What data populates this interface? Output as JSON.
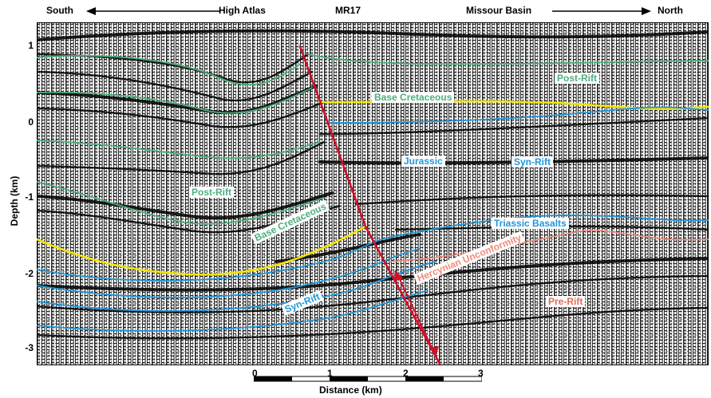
{
  "header": {
    "south": "South",
    "high_atlas": "High Atlas",
    "line_name": "MR17",
    "missour_basin": "Missour Basin",
    "north": "North"
  },
  "axis": {
    "y_title": "Depth (km)",
    "y_ticks": [
      "1",
      "0",
      "-1",
      "-2",
      "-3"
    ],
    "scale_ticks": [
      "0",
      "1",
      "2",
      "3"
    ],
    "scale_title": "Distance (km)"
  },
  "labels": {
    "post_rift_north": "Post-Rift",
    "base_cretaceous_north": "Base Cretaceous",
    "jurassic": "Jurassic",
    "syn_rift_north": "Syn-Rift",
    "post_rift_south": "Post-Rift",
    "triassic_basalts": "Triassic Basalts",
    "base_cretaceous_south": "Base Cretaceous",
    "hercynian_unconformity": "Hercynian Unconformity",
    "syn_rift_south": "Syn-Rift",
    "pre_rift": "Pre-Rift"
  },
  "colors": {
    "post_rift": "#4caf7d",
    "base_cretaceous": "#f5e400",
    "syn_rift": "#2196d8",
    "triassic_basalts": "#2196d8",
    "hercynian": "#f08a78",
    "pre_rift": "#e06b55",
    "fault": "#d0102a",
    "jurassic": "#2196d8"
  }
}
